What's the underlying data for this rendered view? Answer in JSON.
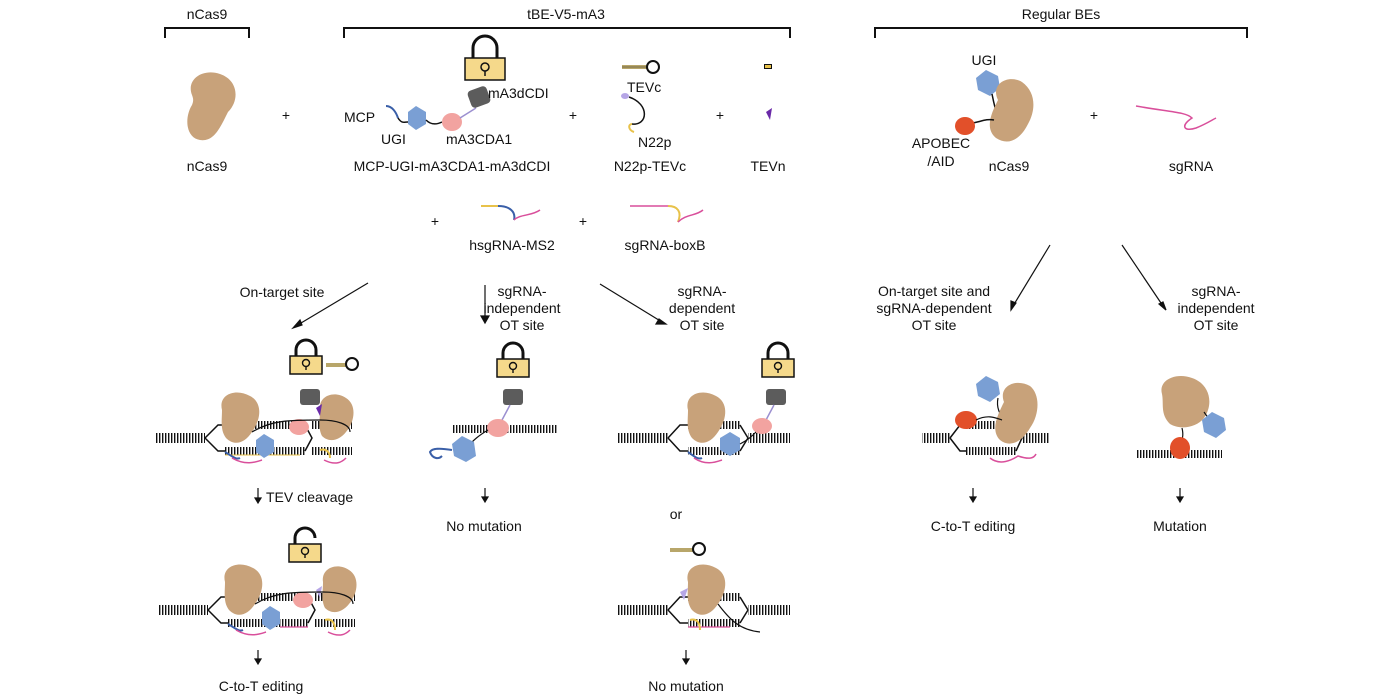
{
  "header": {
    "ncas9": "nCas9",
    "tbe": "tBE-V5-mA3",
    "regular": "Regular BEs"
  },
  "components": {
    "ncas9": "nCas9",
    "plus": "+",
    "mcp": "MCP",
    "ugi": "UGI",
    "ma3dcdi": "mA3dCDI",
    "ma3cda1": "mA3CDA1",
    "mcp_full": "MCP-UGI-mA3CDA1-mA3dCDI",
    "tevc": "TEVc",
    "n22p": "N22p",
    "n22p_tevc": "N22p-TEVc",
    "tevn": "TEVn",
    "hsgrna": "hsgRNA-MS2",
    "sgrna_boxb": "sgRNA-boxB"
  },
  "regular_components": {
    "ugi": "UGI",
    "apobec_1": "APOBEC",
    "apobec_2": "/AID",
    "ncas9": "nCas9",
    "plus": "+",
    "sgrna": "sgRNA"
  },
  "paths": {
    "on_target": "On-target site",
    "sg_indep": [
      "sgRNA-",
      "independent",
      "OT site"
    ],
    "sg_dep": [
      "sgRNA-",
      "dependent",
      "OT site"
    ],
    "reg_on": [
      "On-target site and",
      "sgRNA-dependent",
      "OT site"
    ],
    "reg_indep": [
      "sgRNA-",
      "independent",
      "OT site"
    ]
  },
  "outcomes": {
    "tev_cleavage": "TEV cleavage",
    "no_mutation_1": "No mutation",
    "or": "or",
    "c_to_t_1": "C-to-T editing",
    "no_mutation_2": "No mutation",
    "c_to_t_reg": "C-to-T editing",
    "mutation": "Mutation"
  },
  "colors": {
    "cas9": "#c8a27a",
    "ugi": "#7a9fd4",
    "cda": "#f2a3a0",
    "dcdi": "#5c5c5c",
    "apobec": "#e2502a",
    "lock": "#f5d98b",
    "sgrna": "#d94f9b",
    "ms2": "#e8c24a",
    "mcp": "#3a5fa8",
    "tev": "#b6a6e6",
    "tevn": "#6a2aa8"
  }
}
